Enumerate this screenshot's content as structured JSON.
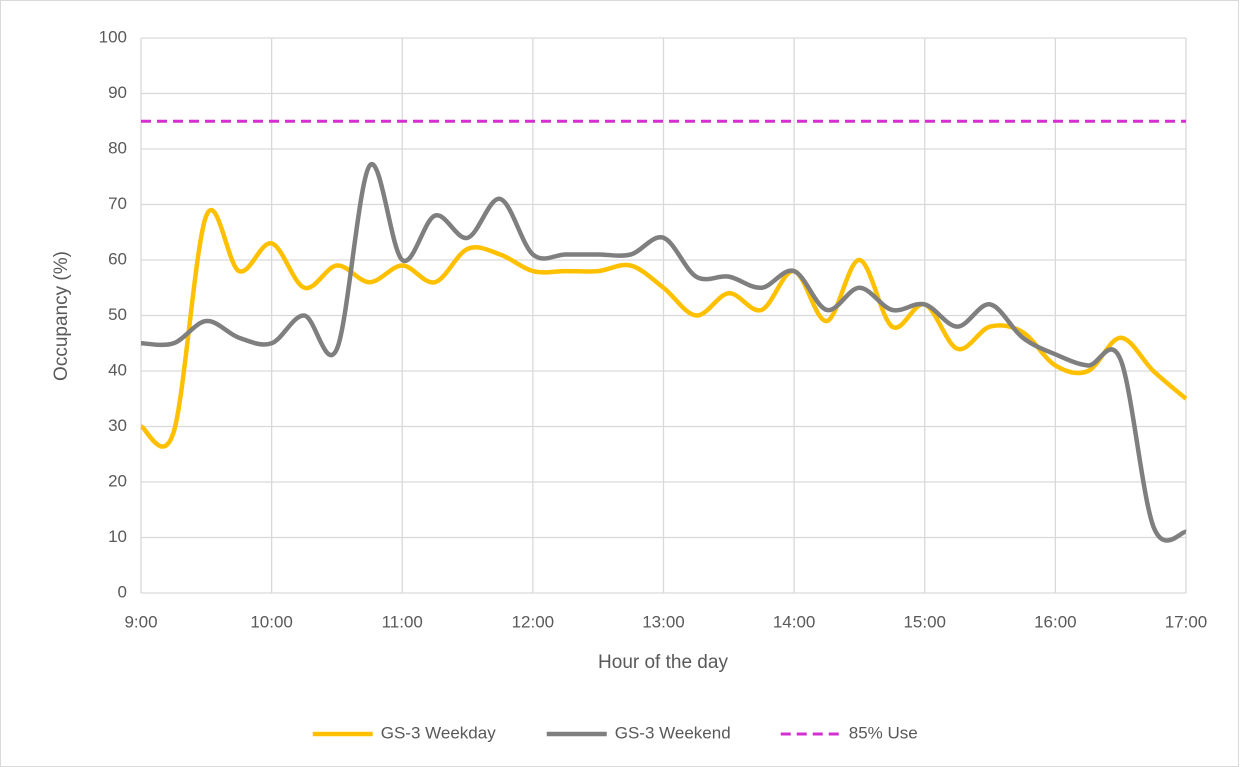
{
  "chart_data": {
    "type": "line",
    "x_label": "Hour of the day",
    "y_label": "Occupancy (%)",
    "x": [
      9,
      9.25,
      9.5,
      9.75,
      10,
      10.25,
      10.5,
      10.75,
      11,
      11.25,
      11.5,
      11.75,
      12,
      12.25,
      12.5,
      12.75,
      13,
      13.25,
      13.5,
      13.75,
      14,
      14.25,
      14.5,
      14.75,
      15,
      15.25,
      15.5,
      15.75,
      16,
      16.25,
      16.5,
      16.75,
      17
    ],
    "series": [
      {
        "name": "GS-3 Weekday",
        "color": "#ffc000",
        "values": [
          30,
          29,
          68,
          58,
          63,
          55,
          59,
          56,
          59,
          56,
          62,
          61,
          58,
          58,
          58,
          59,
          55,
          50,
          54,
          51,
          58,
          49,
          60,
          48,
          52,
          44,
          48,
          47,
          41,
          40,
          46,
          40,
          35
        ]
      },
      {
        "name": "GS-3 Weekend",
        "color": "#7f7f7f",
        "values": [
          45,
          45,
          49,
          46,
          45,
          50,
          44,
          77,
          60,
          68,
          64,
          71,
          61,
          61,
          61,
          61,
          64,
          57,
          57,
          55,
          58,
          51,
          55,
          51,
          52,
          48,
          52,
          46,
          43,
          41,
          42,
          12,
          11
        ]
      },
      {
        "name": "85% Use",
        "color": "#d42fcf",
        "dashed": true,
        "values": [
          85,
          85,
          85,
          85,
          85,
          85,
          85,
          85,
          85,
          85,
          85,
          85,
          85,
          85,
          85,
          85,
          85,
          85,
          85,
          85,
          85,
          85,
          85,
          85,
          85,
          85,
          85,
          85,
          85,
          85,
          85,
          85,
          85
        ]
      }
    ],
    "xlim": [
      9,
      17
    ],
    "xticks": [
      {
        "value": 9,
        "label": "9:00"
      },
      {
        "value": 10,
        "label": "10:00"
      },
      {
        "value": 11,
        "label": "11:00"
      },
      {
        "value": 12,
        "label": "12:00"
      },
      {
        "value": 13,
        "label": "13:00"
      },
      {
        "value": 14,
        "label": "14:00"
      },
      {
        "value": 15,
        "label": "15:00"
      },
      {
        "value": 16,
        "label": "16:00"
      },
      {
        "value": 17,
        "label": "17:00"
      }
    ],
    "ylim": [
      0,
      100
    ],
    "yticks": [
      0,
      10,
      20,
      30,
      40,
      50,
      60,
      70,
      80,
      90,
      100
    ],
    "grid": true,
    "legend": "bottom"
  }
}
